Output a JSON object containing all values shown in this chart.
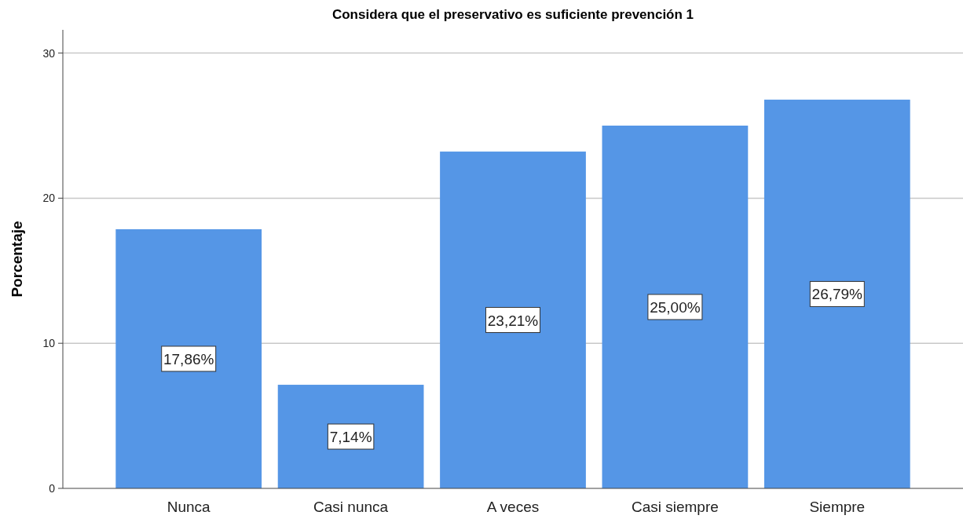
{
  "chart_data": {
    "type": "bar",
    "title": "Considera que el preservativo es suficiente prevención 1",
    "ylabel": "Porcentaje",
    "categories": [
      "Nunca",
      "Casi nunca",
      "A veces",
      "Casi siempre",
      "Siempre"
    ],
    "values": [
      17.86,
      7.14,
      23.21,
      25.0,
      26.79
    ],
    "value_labels": [
      "17,86%",
      "7,14%",
      "23,21%",
      "25,00%",
      "26,79%"
    ],
    "color": "#5596e6",
    "ylim": [
      0,
      31.6
    ],
    "yticks": [
      0,
      10,
      20,
      30
    ],
    "grid": "y"
  }
}
